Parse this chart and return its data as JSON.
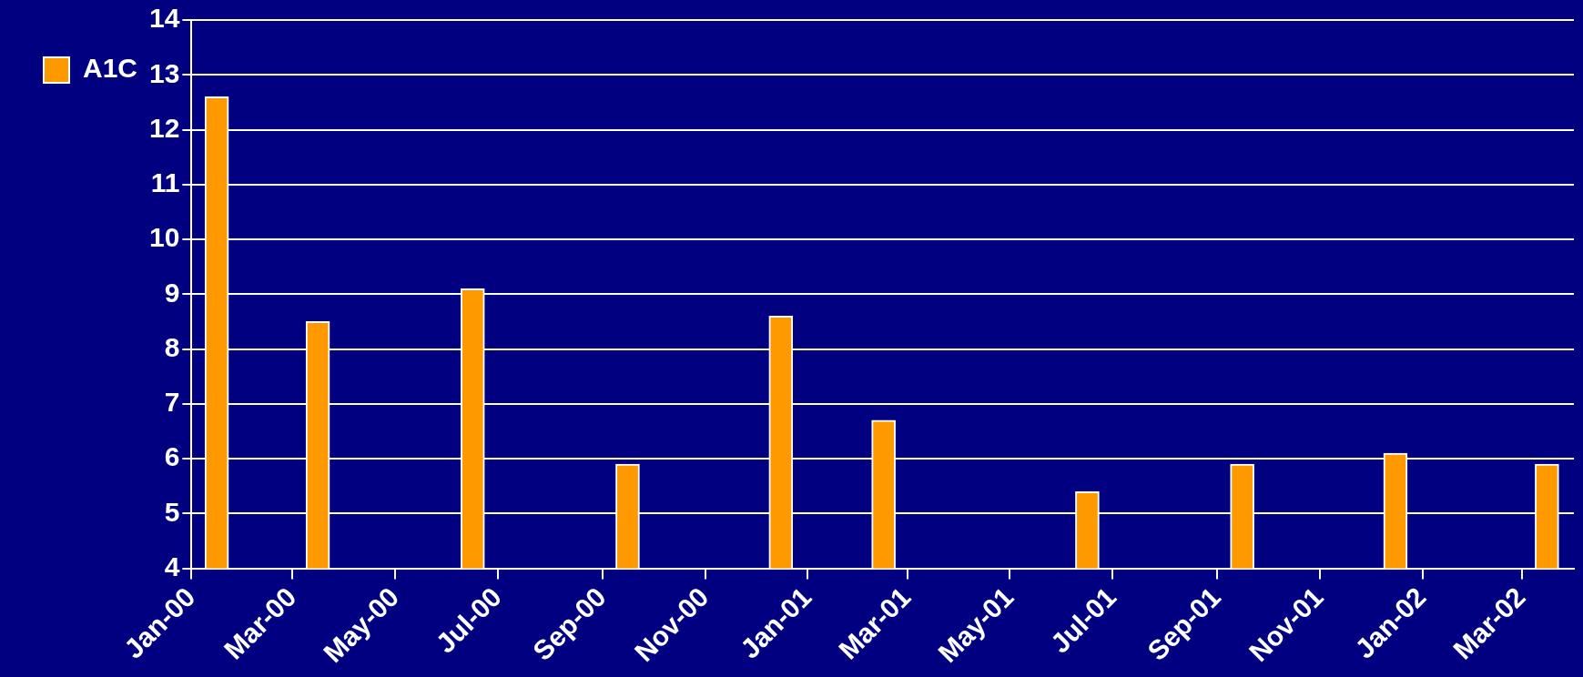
{
  "chart_data": {
    "type": "bar",
    "x": [
      "2000-01-16",
      "2000-03-16",
      "2000-06-16",
      "2000-09-16",
      "2000-12-16",
      "2001-02-15",
      "2001-06-16",
      "2001-09-16",
      "2001-12-16",
      "2002-03-16"
    ],
    "series": [
      {
        "name": "A1C",
        "color": "#ff9900",
        "values": [
          12.6,
          8.5,
          9.1,
          5.9,
          8.6,
          6.7,
          5.4,
          5.9,
          6.1,
          5.9
        ]
      }
    ],
    "ylim": [
      4,
      14
    ],
    "yticks": [
      4,
      5,
      6,
      7,
      8,
      9,
      10,
      11,
      12,
      13,
      14
    ],
    "xlim": [
      "2000-01",
      "2002-04"
    ],
    "xticks": [
      {
        "value": "2000-01",
        "label": "Jan-00"
      },
      {
        "value": "2000-03",
        "label": "Mar-00"
      },
      {
        "value": "2000-05",
        "label": "May-00"
      },
      {
        "value": "2000-07",
        "label": "Jul-00"
      },
      {
        "value": "2000-09",
        "label": "Sep-00"
      },
      {
        "value": "2000-11",
        "label": "Nov-00"
      },
      {
        "value": "2001-01",
        "label": "Jan-01"
      },
      {
        "value": "2001-03",
        "label": "Mar-01"
      },
      {
        "value": "2001-05",
        "label": "May-01"
      },
      {
        "value": "2001-07",
        "label": "Jul-01"
      },
      {
        "value": "2001-09",
        "label": "Sep-01"
      },
      {
        "value": "2001-11",
        "label": "Nov-01"
      },
      {
        "value": "2002-01",
        "label": "Jan-02"
      },
      {
        "value": "2002-03",
        "label": "Mar-02"
      }
    ],
    "grid": "y",
    "legend": "left"
  }
}
